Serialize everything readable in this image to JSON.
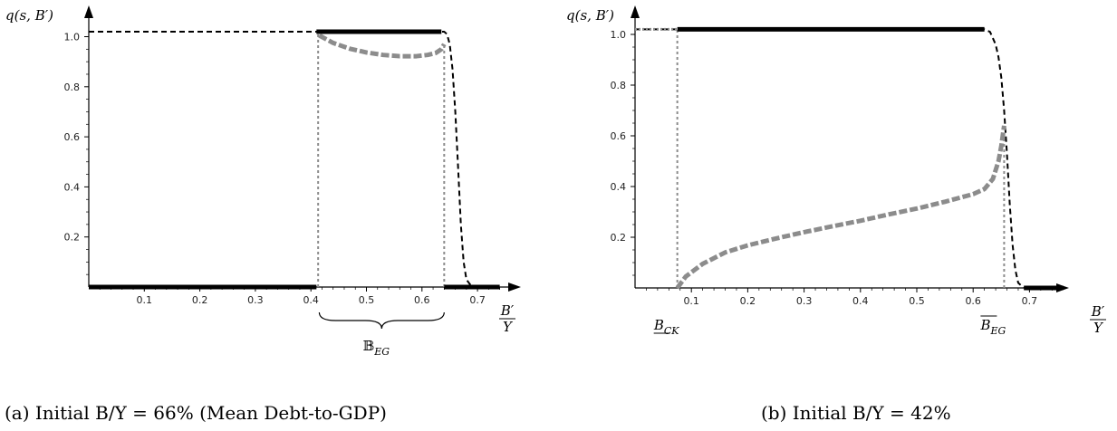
{
  "chart_data": [
    {
      "type": "line",
      "ylabel": "q(s, B′)",
      "xlabel": "B′ / Y",
      "xlabel_num": "B′",
      "xlabel_den": "Y",
      "xlim": [
        0,
        0.76
      ],
      "ylim": [
        0,
        1.06
      ],
      "x_ticks": [
        0.1,
        0.2,
        0.3,
        0.4,
        0.5,
        0.6,
        0.7
      ],
      "y_ticks": [
        0.2,
        0.4,
        0.6,
        0.8,
        1.0
      ],
      "x_tick_labels": [
        "0.1",
        "0.2",
        "0.3",
        "0.4",
        "0.5",
        "0.6",
        "0.7"
      ],
      "y_tick_labels": [
        "0.2",
        "0.4",
        "0.6",
        "0.8",
        "1.0"
      ],
      "series": [
        {
          "style": "black dashed",
          "x": [
            0,
            0.41,
            0.64,
            0.645,
            0.65,
            0.655,
            0.66,
            0.665,
            0.67,
            0.675,
            0.68,
            0.69
          ],
          "y": [
            1.02,
            1.02,
            1.02,
            1.01,
            0.97,
            0.87,
            0.7,
            0.48,
            0.25,
            0.1,
            0.03,
            0.0
          ]
        },
        {
          "style": "black thick",
          "x": [
            0.41,
            0.635
          ],
          "y": [
            1.02,
            1.02
          ]
        },
        {
          "style": "black thick",
          "x": [
            0,
            0.41
          ],
          "y": [
            0,
            0
          ]
        },
        {
          "style": "black thick",
          "x": [
            0.64,
            0.74
          ],
          "y": [
            0,
            0
          ]
        },
        {
          "style": "gray thick dashed",
          "x": [
            0.415,
            0.44,
            0.47,
            0.5,
            0.53,
            0.56,
            0.59,
            0.61,
            0.625,
            0.635,
            0.64
          ],
          "y": [
            1.005,
            0.975,
            0.952,
            0.937,
            0.927,
            0.922,
            0.922,
            0.927,
            0.935,
            0.95,
            0.97
          ]
        }
      ],
      "vlines": [
        {
          "x": 0.413,
          "y_top": 1.02,
          "style": "gray dotted"
        },
        {
          "x": 0.64,
          "y_top": 0.97,
          "style": "gray dotted"
        }
      ],
      "brace": {
        "x_from": 0.415,
        "x_to": 0.64,
        "label": "𝔹",
        "label_sub": "EG"
      },
      "caption": "(a) Initial B/Y = 66% (Mean Debt-to-GDP)"
    },
    {
      "type": "line",
      "ylabel": "q(s, B′)",
      "xlabel": "B′ / Y",
      "xlabel_num": "B′",
      "xlabel_den": "Y",
      "xlim": [
        0,
        0.76
      ],
      "ylim": [
        0,
        1.06
      ],
      "x_ticks": [
        0.1,
        0.2,
        0.3,
        0.4,
        0.5,
        0.6,
        0.7
      ],
      "y_ticks": [
        0.2,
        0.4,
        0.6,
        0.8,
        1.0
      ],
      "x_tick_labels": [
        "0.1",
        "0.2",
        "0.3",
        "0.4",
        "0.5",
        "0.6",
        "0.7"
      ],
      "y_tick_labels": [
        "0.2",
        "0.4",
        "0.6",
        "0.8",
        "1.0"
      ],
      "series": [
        {
          "style": "black dashed",
          "x": [
            0,
            0.62,
            0.63,
            0.64,
            0.645,
            0.65,
            0.655,
            0.66,
            0.665,
            0.67,
            0.675,
            0.68,
            0.69
          ],
          "y": [
            1.02,
            1.02,
            1.01,
            0.96,
            0.91,
            0.83,
            0.7,
            0.53,
            0.33,
            0.17,
            0.07,
            0.02,
            0.0
          ]
        },
        {
          "style": "black thick",
          "x": [
            0.075,
            0.62
          ],
          "y": [
            1.02,
            1.02
          ]
        },
        {
          "style": "gray thick dotted",
          "x": [
            0,
            0.075
          ],
          "y": [
            1.02,
            1.02
          ]
        },
        {
          "style": "gray thick dashed",
          "x": [
            0.075,
            0.09,
            0.12,
            0.16,
            0.2,
            0.25,
            0.3,
            0.35,
            0.4,
            0.45,
            0.5,
            0.55,
            0.6,
            0.62,
            0.635,
            0.645,
            0.65,
            0.655
          ],
          "y": [
            0.0,
            0.045,
            0.095,
            0.14,
            0.168,
            0.195,
            0.22,
            0.243,
            0.265,
            0.29,
            0.313,
            0.34,
            0.37,
            0.39,
            0.43,
            0.5,
            0.56,
            0.64
          ]
        },
        {
          "style": "black thick",
          "x": [
            0.69,
            0.76
          ],
          "y": [
            0,
            0
          ]
        }
      ],
      "vlines": [
        {
          "x": 0.075,
          "y_top": 1.02,
          "style": "gray dotted"
        },
        {
          "x": 0.655,
          "y_top": 0.62,
          "style": "gray dotted"
        }
      ],
      "markers": [
        {
          "label": "B",
          "sub": "CK",
          "bar": "under",
          "x": 0.075
        },
        {
          "label": "B",
          "sub": "EG",
          "bar": "over",
          "x": 0.655
        }
      ],
      "caption": "(b) Initial B/Y = 42%"
    }
  ]
}
